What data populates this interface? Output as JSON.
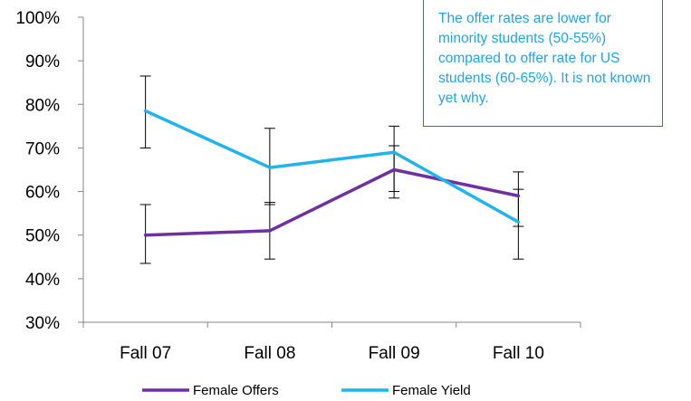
{
  "chart_data": {
    "type": "line",
    "title": "",
    "xlabel": "",
    "ylabel": "",
    "categories": [
      "Fall 07",
      "Fall 08",
      "Fall 09",
      "Fall 10"
    ],
    "ylim": [
      30,
      100
    ],
    "yticks": [
      "30%",
      "40%",
      "50%",
      "60%",
      "70%",
      "80%",
      "90%",
      "100%"
    ],
    "grid": false,
    "legend_position": "bottom",
    "series": [
      {
        "name": "Female Offers",
        "color": "#7030a0",
        "values": [
          50,
          51,
          65,
          59
        ],
        "error_low": [
          43.5,
          44.5,
          58.5,
          52
        ],
        "error_high": [
          57,
          57.5,
          70.5,
          64.5
        ]
      },
      {
        "name": "Female Yield",
        "color": "#1fb4ec",
        "values": [
          78.5,
          65.5,
          69,
          53
        ],
        "error_low": [
          70,
          57,
          60,
          44.5
        ],
        "error_high": [
          86.5,
          74.5,
          75,
          60.5
        ]
      }
    ]
  },
  "annotation": {
    "text": "The offer rates are lower for minority students (50-55%) compared to offer rate for US students (60-65%). It is not known yet why."
  }
}
